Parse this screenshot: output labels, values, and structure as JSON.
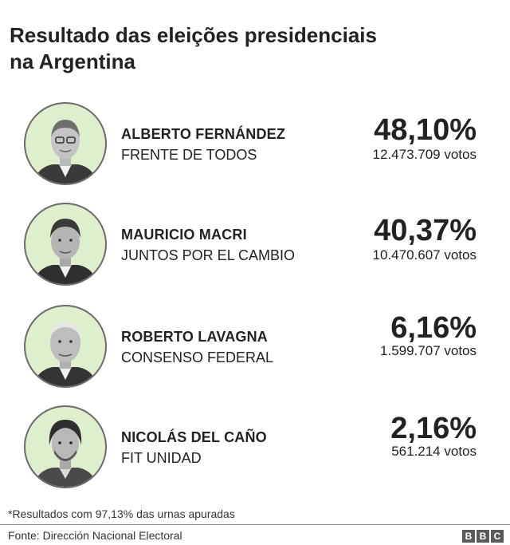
{
  "title_line1": "Resultado das eleições presidenciais",
  "title_line2": "na Argentina",
  "candidates": [
    {
      "name": "ALBERTO FERNÁNDEZ",
      "party": "FRENTE DE TODOS",
      "percent": "48,10%",
      "votes": "12.473.709 votos"
    },
    {
      "name": "MAURICIO MACRI",
      "party": "JUNTOS POR EL CAMBIO",
      "percent": "40,37%",
      "votes": "10.470.607 votos"
    },
    {
      "name": "ROBERTO LAVAGNA",
      "party": "CONSENSO FEDERAL",
      "percent": "6,16%",
      "votes": "1.599.707 votos"
    },
    {
      "name": "NICOLÁS DEL CAÑO",
      "party": "FIT UNIDAD",
      "percent": "2,16%",
      "votes": "561.214 votos"
    }
  ],
  "footnote": "*Resultados com 97,13% das urnas apuradas",
  "source": "Fonte: Dirección Nacional Electoral",
  "logo": [
    "B",
    "B",
    "C"
  ],
  "colors": {
    "avatar_bg": "#dfeecd",
    "avatar_border": "#6b6b6b",
    "text": "#222222",
    "logo_bg": "#5a5a5a"
  }
}
